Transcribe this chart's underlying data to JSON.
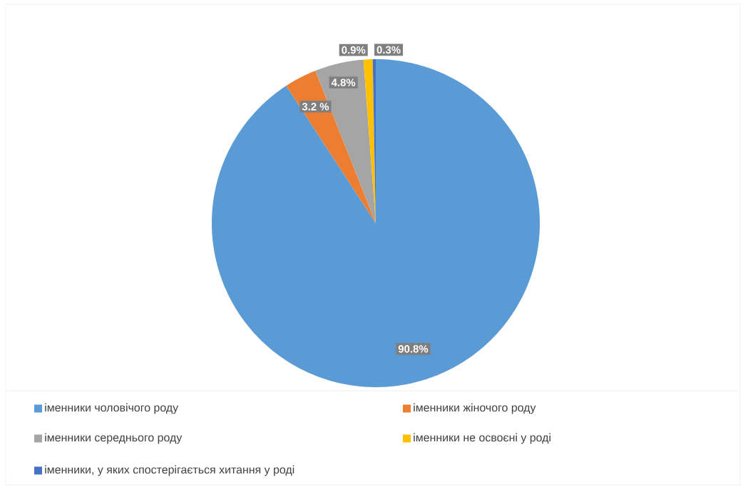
{
  "chart_data": {
    "type": "pie",
    "categories": [
      "іменники чоловічого роду",
      "іменники жіночого роду",
      "іменники середнього роду",
      "іменники не освоєні у роді",
      "іменники, у яких спостерігається хитання у роді"
    ],
    "values": [
      90.8,
      3.2,
      4.8,
      0.9,
      0.3
    ],
    "value_labels": [
      "90.8%",
      "3.2 %",
      "4.8%",
      "0.9%",
      "0.3%"
    ],
    "colors": [
      "#5b9bd5",
      "#ed7d31",
      "#a5a5a5",
      "#ffc000",
      "#4472c4"
    ],
    "legend": "bottom"
  }
}
